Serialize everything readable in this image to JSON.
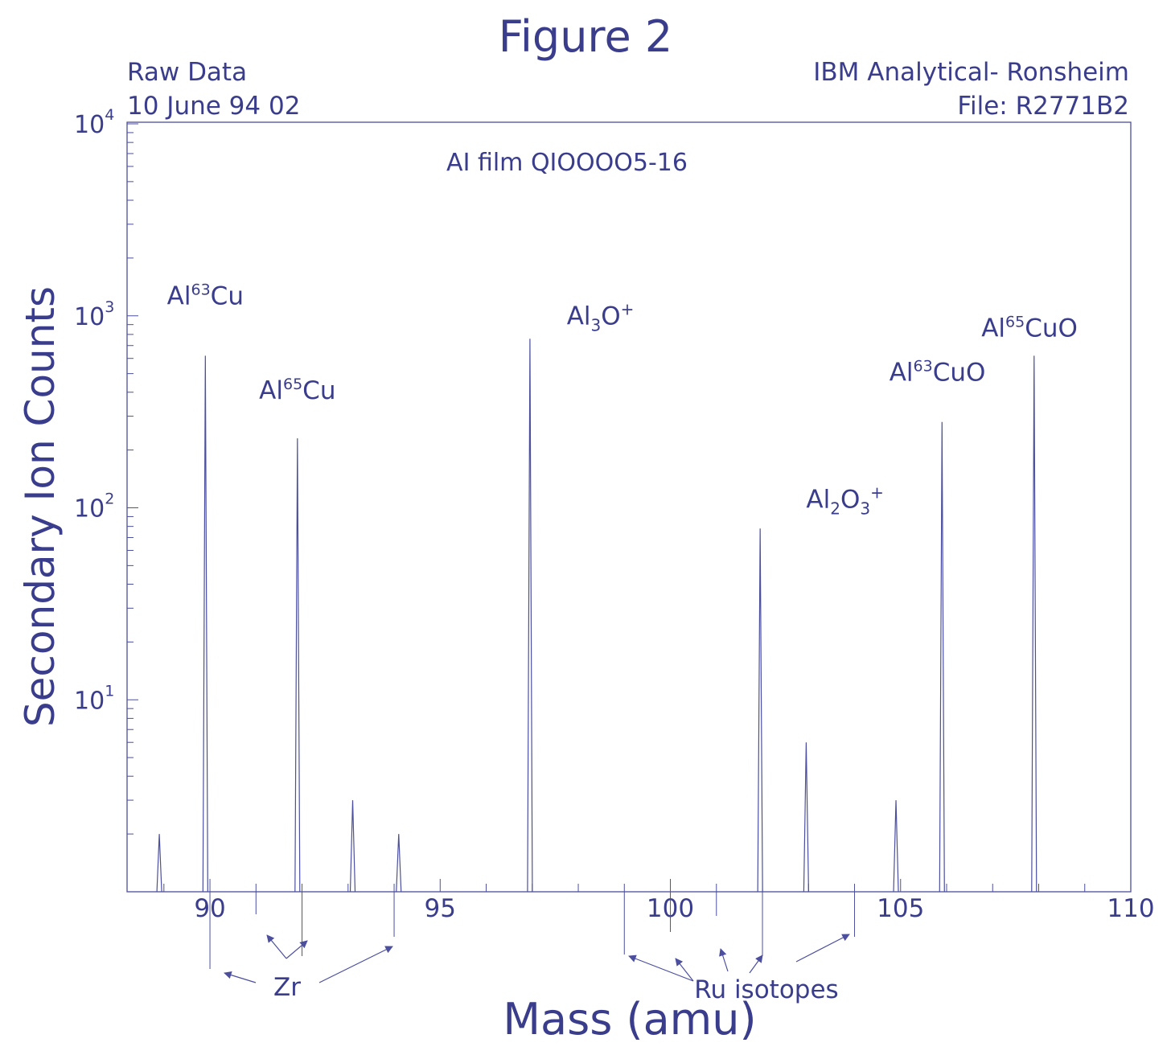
{
  "header": {
    "figure_title": "Figure 2",
    "left_line1": "Raw Data",
    "left_line2": "10 June 94 02",
    "right_line1": "IBM Analytical- Ronsheim",
    "right_line2": "File: R2771B2"
  },
  "colors": {
    "ink": "#3a3d8c",
    "plot_line": "#4b4f9e",
    "background": "#ffffff"
  },
  "chart_data": {
    "type": "line",
    "title": "Figure 2",
    "subtitle": "AI film QIOOOO5-16",
    "xlabel": "Mass (amu)",
    "ylabel": "Secondary Ion Counts",
    "xlim": [
      88.2,
      110
    ],
    "ylim": [
      1,
      10000
    ],
    "yscale": "log",
    "xticks": [
      90,
      95,
      100,
      105,
      110
    ],
    "yticks": [
      {
        "base": "10",
        "exp": "1",
        "value": 10
      },
      {
        "base": "10",
        "exp": "2",
        "value": 100
      },
      {
        "base": "10",
        "exp": "3",
        "value": 1000
      },
      {
        "base": "10",
        "exp": "4",
        "value": 10000
      }
    ],
    "grid": false,
    "peaks": [
      {
        "x": 88.9,
        "y": 2
      },
      {
        "x": 89.9,
        "y": 620
      },
      {
        "x": 91.9,
        "y": 230
      },
      {
        "x": 93.1,
        "y": 3
      },
      {
        "x": 94.1,
        "y": 2
      },
      {
        "x": 96.95,
        "y": 760
      },
      {
        "x": 101.95,
        "y": 78
      },
      {
        "x": 102.95,
        "y": 6
      },
      {
        "x": 104.9,
        "y": 3
      },
      {
        "x": 105.9,
        "y": 280
      },
      {
        "x": 107.9,
        "y": 620
      }
    ],
    "peak_labels": [
      {
        "id": "al63cu",
        "pre": "Al",
        "sup": "63",
        "post": "Cu",
        "x": 89.9,
        "y": 1150
      },
      {
        "id": "al65cu",
        "pre": "Al",
        "sup": "65",
        "post": "Cu",
        "x": 91.9,
        "y": 370
      },
      {
        "id": "al3o",
        "pre": "Al",
        "sub1": "3",
        "mid": "O",
        "sup": "+",
        "x": 97.75,
        "y": 900
      },
      {
        "id": "al2o3",
        "pre": "Al",
        "sub1": "2",
        "mid": "O",
        "sub2": "3",
        "sup": "+",
        "x": 102.95,
        "y": 100
      },
      {
        "id": "al63cuo",
        "pre": "Al",
        "sup": "63",
        "post": "CuO",
        "x": 105.8,
        "y": 460
      },
      {
        "id": "al65cuo",
        "pre": "Al",
        "sup": "65",
        "post": "CuO",
        "x": 107.8,
        "y": 780
      }
    ],
    "annotations": [
      {
        "text": "Zr",
        "isotope_masses": [
          90,
          91,
          92,
          94
        ]
      },
      {
        "text": "Ru isotopes",
        "isotope_masses": [
          99,
          100,
          101,
          102,
          104
        ]
      }
    ]
  }
}
